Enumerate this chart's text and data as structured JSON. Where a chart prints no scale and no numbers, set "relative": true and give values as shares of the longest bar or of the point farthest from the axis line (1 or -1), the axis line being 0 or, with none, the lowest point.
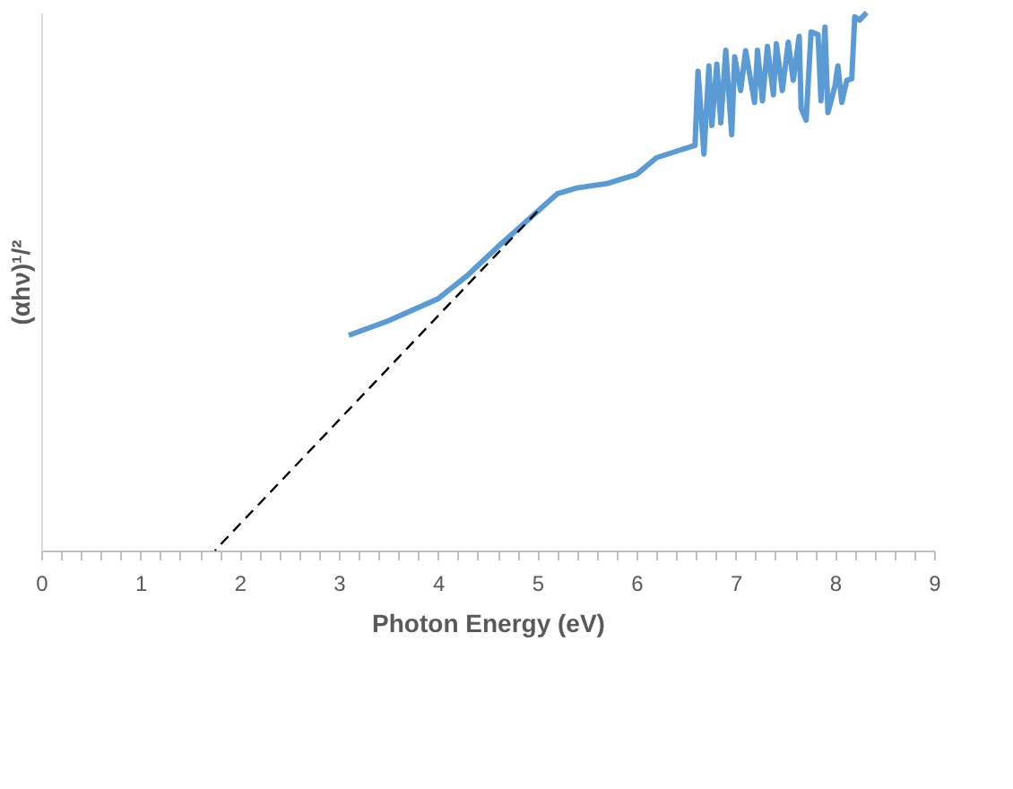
{
  "chart_data": {
    "type": "line",
    "relative": true,
    "xlabel": "Photon Energy (eV)",
    "ylabel": "(αhν)¹/²",
    "xlim": [
      0,
      9
    ],
    "xticks": [
      0,
      {
        "value": 0.2,
        "label": null
      },
      {
        "value": 0.4,
        "label": null
      },
      {
        "value": 0.6,
        "label": null
      },
      {
        "value": 0.8,
        "label": null
      },
      1,
      {
        "value": 1.2,
        "label": null
      },
      {
        "value": 1.4,
        "label": null
      },
      {
        "value": 1.6,
        "label": null
      },
      {
        "value": 1.8,
        "label": null
      },
      2,
      {
        "value": 2.2,
        "label": null
      },
      {
        "value": 2.4,
        "label": null
      },
      {
        "value": 2.6,
        "label": null
      },
      {
        "value": 2.8,
        "label": null
      },
      3,
      {
        "value": 3.2,
        "label": null
      },
      {
        "value": 3.4,
        "label": null
      },
      {
        "value": 3.6,
        "label": null
      },
      {
        "value": 3.8,
        "label": null
      },
      4,
      {
        "value": 4.2,
        "label": null
      },
      {
        "value": 4.4,
        "label": null
      },
      {
        "value": 4.6,
        "label": null
      },
      {
        "value": 4.8,
        "label": null
      },
      5,
      {
        "value": 5.2,
        "label": null
      },
      {
        "value": 5.4,
        "label": null
      },
      {
        "value": 5.6,
        "label": null
      },
      {
        "value": 5.8,
        "label": null
      },
      6,
      {
        "value": 6.2,
        "label": null
      },
      {
        "value": 6.4,
        "label": null
      },
      {
        "value": 6.6,
        "label": null
      },
      {
        "value": 6.8,
        "label": null
      },
      7,
      {
        "value": 7.2,
        "label": null
      },
      {
        "value": 7.4,
        "label": null
      },
      {
        "value": 7.6,
        "label": null
      },
      {
        "value": 7.8,
        "label": null
      },
      8,
      {
        "value": 8.2,
        "label": null
      },
      {
        "value": 8.4,
        "label": null
      },
      {
        "value": 8.6,
        "label": null
      },
      {
        "value": 8.8,
        "label": null
      },
      9
    ],
    "tick_labels": "x",
    "grid": false,
    "legend": false,
    "marker": "none",
    "series": [
      {
        "color": "#5b9bd5",
        "line_style": "solid",
        "x": [
          3.1,
          3.5,
          4.0,
          4.3,
          4.6,
          5.0,
          5.2,
          5.4,
          5.7,
          6.0,
          6.2,
          6.45,
          6.59,
          6.62,
          6.68,
          6.73,
          6.76,
          6.81,
          6.85,
          6.9,
          6.96,
          6.99,
          7.05,
          7.1,
          7.19,
          7.22,
          7.27,
          7.32,
          7.38,
          7.41,
          7.47,
          7.53,
          7.58,
          7.64,
          7.66,
          7.71,
          7.76,
          7.83,
          7.86,
          7.9,
          7.93,
          8.0,
          8.03,
          8.07,
          8.12,
          8.17,
          8.2,
          8.25,
          8.32
        ],
        "values": [
          0.4,
          0.427,
          0.468,
          0.512,
          0.564,
          0.63,
          0.663,
          0.674,
          0.682,
          0.699,
          0.73,
          0.745,
          0.753,
          0.891,
          0.737,
          0.901,
          0.79,
          0.904,
          0.795,
          0.93,
          0.773,
          0.918,
          0.855,
          0.929,
          0.833,
          0.93,
          0.836,
          0.937,
          0.847,
          0.942,
          0.855,
          0.945,
          0.874,
          0.956,
          0.822,
          0.8,
          0.964,
          0.959,
          0.836,
          0.973,
          0.814,
          0.863,
          0.901,
          0.833,
          0.874,
          0.877,
          0.992,
          0.986,
          1.0
        ]
      },
      {
        "type": "line",
        "color": "#000000",
        "line_style": "dashed",
        "x": [
          5.0,
          1.75
        ],
        "values": [
          0.63,
          0
        ]
      }
    ]
  }
}
